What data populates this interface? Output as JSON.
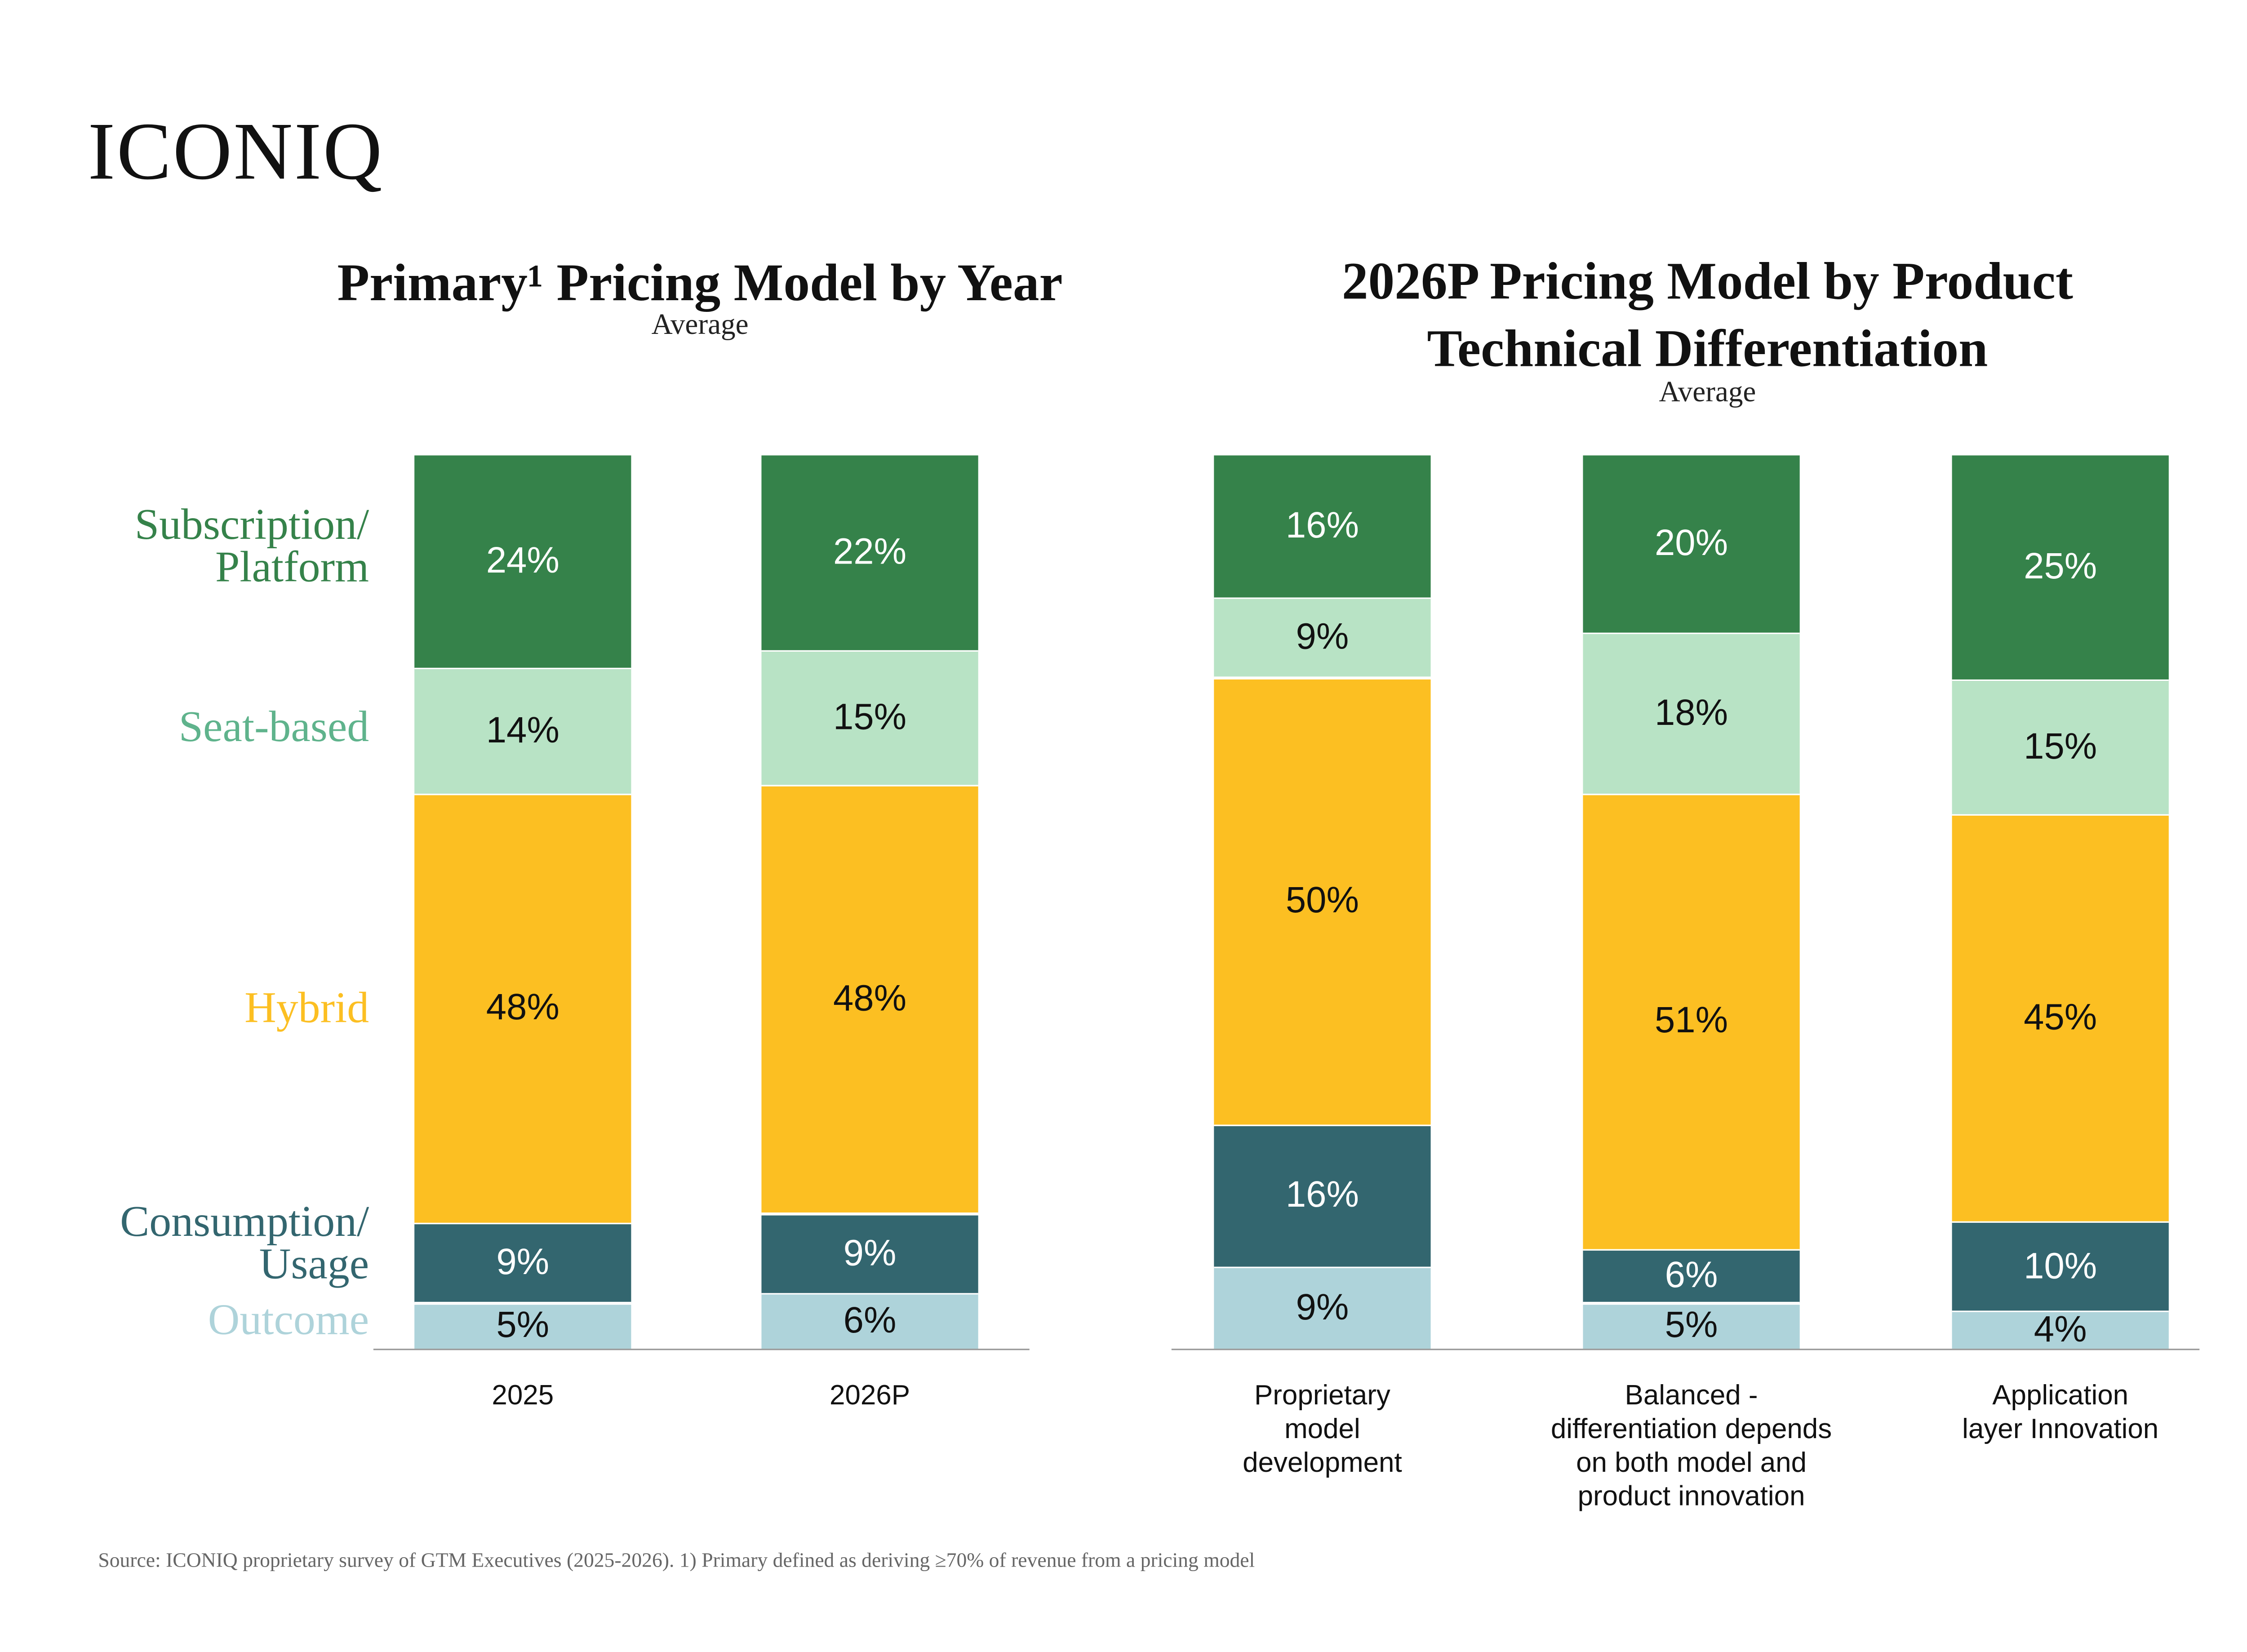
{
  "logo": "ICONIQ",
  "footer": "Source: ICONIQ proprietary survey of GTM Executives (2025-2026). 1) Primary defined as deriving ≥70% of revenue from a pricing model",
  "colors": {
    "Outcome": "#aed3da",
    "Consumption/Usage": "#33666f",
    "Hybrid": "#fcbf22",
    "Seat-based": "#b8e3c5",
    "Subscription/Platform": "#35824a"
  },
  "legend": {
    "subscription_1": "Subscription/",
    "subscription_2": "Platform",
    "seat": "Seat-based",
    "hybrid": "Hybrid",
    "consumption_1": "Consumption/",
    "consumption_2": "Usage",
    "outcome": "Outcome"
  },
  "legend_colors": {
    "subscription": "#35824a",
    "seat": "#5fb38c",
    "hybrid": "#fcbf22",
    "consumption": "#33666f",
    "outcome": "#aed3da"
  },
  "chart_data": [
    {
      "type": "bar",
      "stacked": true,
      "title": "Primary¹ Pricing Model by Year",
      "subtitle": "Average",
      "categories": [
        "2025",
        "2026P"
      ],
      "series": [
        {
          "name": "Outcome",
          "values": [
            5,
            6
          ]
        },
        {
          "name": "Consumption/Usage",
          "values": [
            9,
            9
          ]
        },
        {
          "name": "Hybrid",
          "values": [
            48,
            48
          ]
        },
        {
          "name": "Seat-based",
          "values": [
            14,
            15
          ]
        },
        {
          "name": "Subscription/Platform",
          "values": [
            24,
            22
          ]
        }
      ],
      "legend": "left"
    },
    {
      "type": "bar",
      "stacked": true,
      "title_1": "2026P Pricing Model by Product",
      "title_2": "Technical Differentiation",
      "subtitle": "Average",
      "categories": [
        [
          "Proprietary",
          "model",
          "development"
        ],
        [
          "Balanced -",
          "differentiation depends",
          "on both model and",
          "product innovation"
        ],
        [
          "Application",
          "layer Innovation"
        ]
      ],
      "series": [
        {
          "name": "Outcome",
          "values": [
            9,
            5,
            4
          ]
        },
        {
          "name": "Consumption/Usage",
          "values": [
            16,
            6,
            10
          ]
        },
        {
          "name": "Hybrid",
          "values": [
            50,
            51,
            45
          ]
        },
        {
          "name": "Seat-based",
          "values": [
            9,
            18,
            15
          ]
        },
        {
          "name": "Subscription/Platform",
          "values": [
            16,
            20,
            25
          ]
        }
      ]
    }
  ]
}
